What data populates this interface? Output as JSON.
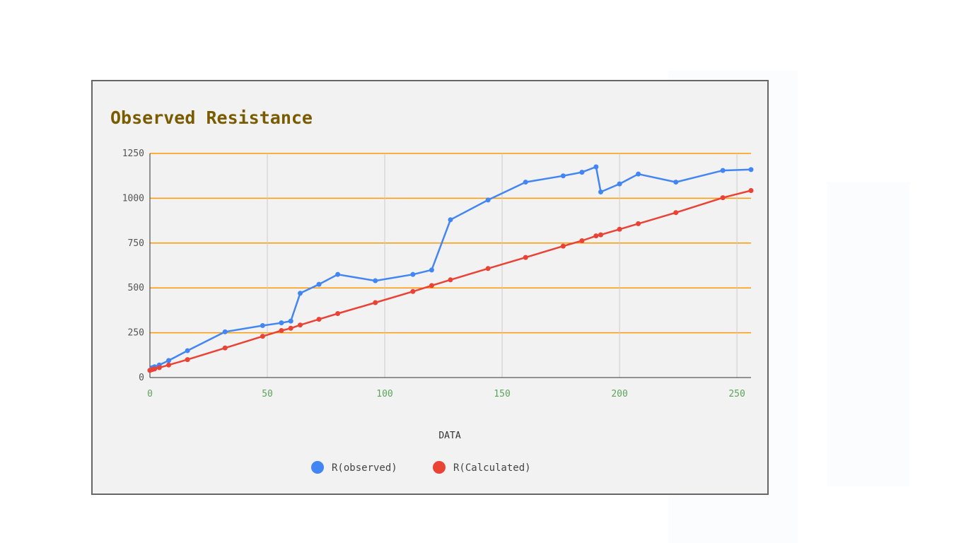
{
  "chart_data": {
    "type": "line",
    "title": "Observed Resistance",
    "xlabel": "DATA",
    "ylabel": "",
    "xlim": [
      0,
      256
    ],
    "ylim": [
      0,
      1250
    ],
    "x_ticks": [
      "0",
      "50",
      "100",
      "150",
      "200",
      "250"
    ],
    "y_ticks": [
      "0",
      "250",
      "500",
      "750",
      "1000",
      "1250"
    ],
    "grid": true,
    "legend_position": "bottom",
    "series": [
      {
        "name": "R(observed)",
        "color": "#4285f4",
        "x": [
          0,
          1,
          2,
          4,
          8,
          16,
          32,
          48,
          56,
          60,
          64,
          72,
          80,
          96,
          112,
          120,
          128,
          144,
          160,
          176,
          184,
          190,
          192,
          200,
          208,
          224,
          244,
          256
        ],
        "y": [
          40,
          55,
          60,
          70,
          95,
          150,
          255,
          290,
          305,
          315,
          470,
          520,
          575,
          540,
          575,
          600,
          880,
          990,
          1090,
          1125,
          1145,
          1175,
          1035,
          1080,
          1135,
          1090,
          1155,
          1160
        ]
      },
      {
        "name": "R(Calculated)",
        "color": "#ea4335",
        "x": [
          0,
          1,
          2,
          4,
          8,
          16,
          32,
          48,
          56,
          60,
          64,
          72,
          80,
          96,
          112,
          120,
          128,
          144,
          160,
          176,
          184,
          190,
          192,
          200,
          208,
          224,
          244,
          256
        ],
        "y": [
          40,
          45,
          48,
          55,
          70,
          100,
          165,
          230,
          262,
          275,
          293,
          325,
          357,
          418,
          480,
          513,
          545,
          608,
          670,
          733,
          763,
          790,
          796,
          827,
          858,
          920,
          1003,
          1043
        ]
      }
    ],
    "colors": {
      "title": "#7a5c00",
      "x_tick": "#5aa55a",
      "grid_orange": "#ff9900",
      "grid_gray": "#cccccc",
      "axis": "#333333"
    }
  }
}
